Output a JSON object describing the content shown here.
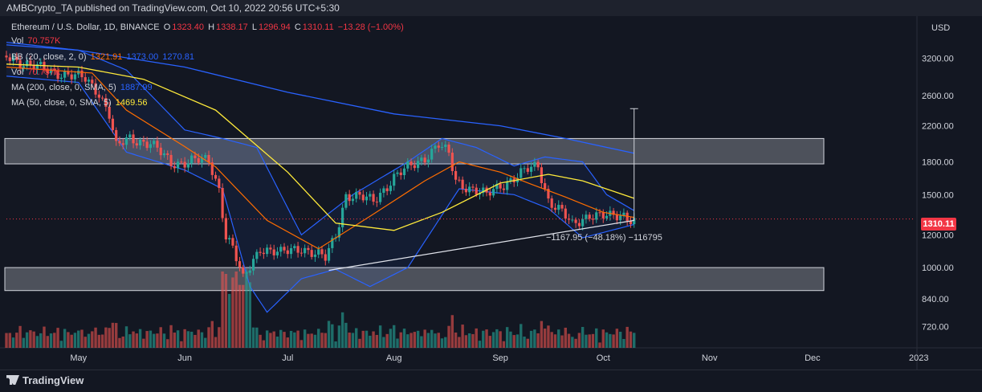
{
  "header": {
    "published": "AMBCrypto_TA published on TradingView.com, Oct 10, 2022 20:56 UTC+5:30"
  },
  "legend": {
    "symbol": "Ethereum / U.S. Dollar, 1D, BINANCE",
    "o_label": "O",
    "o_value": "1323.40",
    "h_label": "H",
    "h_value": "1338.17",
    "l_label": "L",
    "l_value": "1296.94",
    "c_label": "C",
    "c_value": "1310.11",
    "change": "−13.28 (−1.00%)",
    "vol_label": "Vol",
    "vol_value": "70.757K",
    "bb_label": "BB (20, close, 2, 0)",
    "bb_basis": "1321.91",
    "bb_upper": "1373.00",
    "bb_lower": "1270.81",
    "vol2_label": "Vol",
    "vol2_value": "70.757K",
    "ma200_label": "MA (200, close, 0, SMA, 5)",
    "ma200_value": "1887.99",
    "ma50_label": "MA (50, close, 0, SMA, 5)",
    "ma50_value": "1469.56"
  },
  "price_tag": "1310.11",
  "measure_label": "−1167.95 (−48.18%) −116795",
  "branding": "TradingView",
  "colors": {
    "up": "#26a69a",
    "down": "#ef5350",
    "ma50": "#ffeb3b",
    "ma200": "#2962ff",
    "bb": "#2962ff",
    "basis": "#ff6d00",
    "zone": "#9598a1"
  },
  "chart_data": {
    "type": "candlestick",
    "currency": "USD",
    "y_axis": {
      "scale": "log",
      "ticks": [
        720,
        840,
        1000,
        1200,
        1500,
        1800,
        2200,
        2600,
        3200
      ]
    },
    "y_tick_labels": [
      "720.00",
      "840.00",
      "1000.00",
      "1200.00",
      "1500.00",
      "1800.00",
      "2200.00",
      "2600.00",
      "3200.00"
    ],
    "x_tick_labels": [
      "May",
      "Jun",
      "Jul",
      "Aug",
      "Sep",
      "Oct",
      "Nov",
      "Dec",
      "2023"
    ],
    "x_range": [
      "2022-04-10",
      "2022-12-31"
    ],
    "ylim": [
      640,
      4050
    ],
    "zones": [
      {
        "low": 1780,
        "high": 2050
      },
      {
        "low": 880,
        "high": 1000
      }
    ],
    "trendline": {
      "from": [
        "2022-07-13",
        985
      ],
      "to": [
        "2022-10-10",
        1300
      ]
    },
    "measure": {
      "date": "2022-10-10",
      "from": 1296,
      "to": 2420
    },
    "last_close": 1310.11,
    "price_path": [
      [
        "2022-04-10",
        3250
      ],
      [
        "2022-04-18",
        3050
      ],
      [
        "2022-04-26",
        2950
      ],
      [
        "2022-05-03",
        2850
      ],
      [
        "2022-05-07",
        2650
      ],
      [
        "2022-05-10",
        2350
      ],
      [
        "2022-05-12",
        1950
      ],
      [
        "2022-05-16",
        2050
      ],
      [
        "2022-05-22",
        2000
      ],
      [
        "2022-05-28",
        1780
      ],
      [
        "2022-06-03",
        1820
      ],
      [
        "2022-06-08",
        1800
      ],
      [
        "2022-06-11",
        1550
      ],
      [
        "2022-06-13",
        1200
      ],
      [
        "2022-06-15",
        1120
      ],
      [
        "2022-06-18",
        930
      ],
      [
        "2022-06-23",
        1120
      ],
      [
        "2022-06-29",
        1080
      ],
      [
        "2022-07-05",
        1120
      ],
      [
        "2022-07-12",
        1050
      ],
      [
        "2022-07-15",
        1200
      ],
      [
        "2022-07-18",
        1500
      ],
      [
        "2022-07-26",
        1450
      ],
      [
        "2022-08-01",
        1650
      ],
      [
        "2022-08-10",
        1850
      ],
      [
        "2022-08-14",
        1980
      ],
      [
        "2022-08-17",
        1870
      ],
      [
        "2022-08-19",
        1620
      ],
      [
        "2022-08-28",
        1490
      ],
      [
        "2022-09-01",
        1580
      ],
      [
        "2022-09-09",
        1720
      ],
      [
        "2022-09-12",
        1760
      ],
      [
        "2022-09-15",
        1460
      ],
      [
        "2022-09-19",
        1360
      ],
      [
        "2022-09-22",
        1260
      ],
      [
        "2022-09-27",
        1350
      ],
      [
        "2022-10-03",
        1320
      ],
      [
        "2022-10-07",
        1340
      ],
      [
        "2022-10-10",
        1310
      ]
    ],
    "ma50": [
      [
        "2022-04-10",
        3100
      ],
      [
        "2022-05-01",
        3050
      ],
      [
        "2022-05-20",
        2850
      ],
      [
        "2022-06-10",
        2400
      ],
      [
        "2022-07-01",
        1700
      ],
      [
        "2022-07-15",
        1280
      ],
      [
        "2022-08-01",
        1230
      ],
      [
        "2022-08-15",
        1360
      ],
      [
        "2022-09-01",
        1600
      ],
      [
        "2022-09-15",
        1680
      ],
      [
        "2022-09-25",
        1620
      ],
      [
        "2022-10-10",
        1469.56
      ]
    ],
    "ma200": [
      [
        "2022-04-10",
        3450
      ],
      [
        "2022-05-01",
        3350
      ],
      [
        "2022-06-01",
        3050
      ],
      [
        "2022-07-01",
        2650
      ],
      [
        "2022-08-01",
        2350
      ],
      [
        "2022-09-01",
        2200
      ],
      [
        "2022-09-20",
        2050
      ],
      [
        "2022-10-10",
        1887.99
      ]
    ],
    "bb_basis": [
      [
        "2022-04-10",
        3050
      ],
      [
        "2022-05-05",
        2950
      ],
      [
        "2022-05-15",
        2400
      ],
      [
        "2022-06-01",
        1960
      ],
      [
        "2022-06-10",
        1750
      ],
      [
        "2022-06-25",
        1300
      ],
      [
        "2022-07-10",
        1110
      ],
      [
        "2022-07-25",
        1330
      ],
      [
        "2022-08-10",
        1620
      ],
      [
        "2022-08-20",
        1800
      ],
      [
        "2022-09-01",
        1700
      ],
      [
        "2022-09-10",
        1590
      ],
      [
        "2022-09-20",
        1480
      ],
      [
        "2022-10-01",
        1360
      ],
      [
        "2022-10-10",
        1321.91
      ]
    ],
    "bb_upper": [
      [
        "2022-04-10",
        3500
      ],
      [
        "2022-05-01",
        3350
      ],
      [
        "2022-05-15",
        3000
      ],
      [
        "2022-06-01",
        2150
      ],
      [
        "2022-06-12",
        2050
      ],
      [
        "2022-06-22",
        1950
      ],
      [
        "2022-07-05",
        1200
      ],
      [
        "2022-07-20",
        1500
      ],
      [
        "2022-08-05",
        1800
      ],
      [
        "2022-08-15",
        2050
      ],
      [
        "2022-08-25",
        1950
      ],
      [
        "2022-09-05",
        1760
      ],
      [
        "2022-09-14",
        1850
      ],
      [
        "2022-09-25",
        1800
      ],
      [
        "2022-10-02",
        1500
      ],
      [
        "2022-10-10",
        1373.0
      ]
    ],
    "bb_lower": [
      [
        "2022-04-10",
        2900
      ],
      [
        "2022-05-01",
        2800
      ],
      [
        "2022-05-15",
        1900
      ],
      [
        "2022-06-01",
        1720
      ],
      [
        "2022-06-12",
        1550
      ],
      [
        "2022-06-20",
        900
      ],
      [
        "2022-06-25",
        780
      ],
      [
        "2022-07-05",
        940
      ],
      [
        "2022-07-15",
        990
      ],
      [
        "2022-07-25",
        900
      ],
      [
        "2022-08-05",
        1000
      ],
      [
        "2022-08-20",
        1550
      ],
      [
        "2022-09-05",
        1500
      ],
      [
        "2022-09-15",
        1390
      ],
      [
        "2022-09-25",
        1180
      ],
      [
        "2022-10-10",
        1270.81
      ]
    ]
  }
}
